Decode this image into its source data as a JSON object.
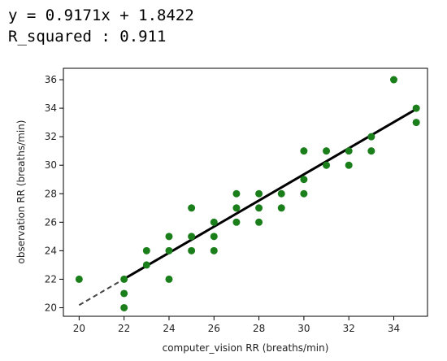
{
  "annotation": {
    "equation": "y = 0.9171x + 1.8422",
    "r_squared": "R_squared : 0.911"
  },
  "chart_data": {
    "type": "scatter",
    "xlabel": "computer_vision RR (breaths/min)",
    "ylabel": "observation RR (breaths/min)",
    "xlim": [
      19.3,
      35.5
    ],
    "ylim": [
      19.4,
      36.8
    ],
    "xticks": [
      20,
      22,
      24,
      26,
      28,
      30,
      32,
      34
    ],
    "yticks": [
      20,
      22,
      24,
      26,
      28,
      30,
      32,
      34,
      36
    ],
    "grid": false,
    "point_color": "#1a7f1a",
    "fit_color": "#000000",
    "fit_line": {
      "slope": 0.9171,
      "intercept": 1.8422,
      "dashed_range": [
        20,
        22
      ],
      "solid_range": [
        22,
        35
      ]
    },
    "points": [
      [
        20,
        22
      ],
      [
        22,
        22
      ],
      [
        22,
        21
      ],
      [
        22,
        20
      ],
      [
        23,
        24
      ],
      [
        23,
        23
      ],
      [
        24,
        25
      ],
      [
        24,
        24
      ],
      [
        24,
        22
      ],
      [
        25,
        27
      ],
      [
        25,
        25
      ],
      [
        25,
        24
      ],
      [
        26,
        26
      ],
      [
        26,
        25
      ],
      [
        26,
        24
      ],
      [
        27,
        28
      ],
      [
        27,
        27
      ],
      [
        27,
        26
      ],
      [
        28,
        28
      ],
      [
        28,
        27
      ],
      [
        28,
        26
      ],
      [
        29,
        28
      ],
      [
        29,
        27
      ],
      [
        30,
        31
      ],
      [
        30,
        29
      ],
      [
        30,
        28
      ],
      [
        31,
        31
      ],
      [
        31,
        30
      ],
      [
        32,
        31
      ],
      [
        32,
        30
      ],
      [
        33,
        32
      ],
      [
        33,
        31
      ],
      [
        34,
        36
      ],
      [
        35,
        34
      ],
      [
        35,
        33
      ]
    ]
  }
}
